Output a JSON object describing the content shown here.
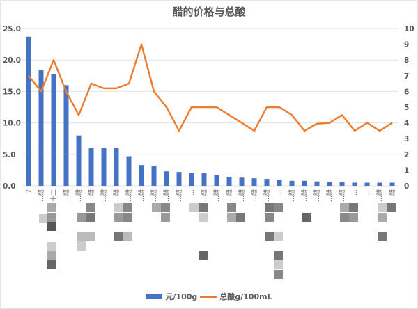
{
  "colors": {
    "bar": "#4472c4",
    "line": "#ed7d31",
    "grid": "#e3e3e3",
    "text": "#595959"
  },
  "chart_data": {
    "type": "bar+line",
    "title": "醋的价格与总酸",
    "xlabel": "",
    "ylabel_left": "",
    "ylabel_right": "",
    "ylim_left": [
      0,
      25
    ],
    "ylim_right": [
      0,
      10
    ],
    "left_ticks": [
      "0.0",
      "5.0",
      "10.0",
      "15.0",
      "20.0",
      "25.0"
    ],
    "right_ticks": [
      "0",
      "1",
      "2",
      "3",
      "4",
      "5",
      "6",
      "7",
      "8",
      "9",
      "10"
    ],
    "grid": true,
    "legend_position": "bottom",
    "categories": [
      "7",
      "…醋",
      "…十二",
      "…醋",
      "…醋",
      "…醋",
      "…醋",
      "…醋",
      "…醋",
      "…醋",
      "…醋",
      "…醋",
      "…醋",
      "…",
      "…醋",
      "…醋",
      "…醋",
      "…醋",
      "…醋",
      "…醋",
      "…",
      "…醋",
      "…醋",
      "…醋",
      "…醋",
      "…醋",
      "…",
      "…",
      "…醋",
      "…醋"
    ],
    "series": [
      {
        "name": "元/100g",
        "type": "bar",
        "axis": "left",
        "values": [
          23.7,
          18.4,
          17.8,
          16.0,
          8.0,
          6.0,
          6.0,
          6.0,
          4.7,
          3.3,
          3.2,
          2.3,
          2.2,
          2.1,
          2.0,
          1.7,
          1.4,
          1.3,
          1.2,
          1.1,
          1.0,
          0.8,
          0.8,
          0.7,
          0.6,
          0.6,
          0.5,
          0.5,
          0.5,
          0.5
        ]
      },
      {
        "name": "总酸g/100mL",
        "type": "line",
        "axis": "right",
        "values": [
          7.0,
          6.0,
          8.0,
          6.0,
          4.5,
          6.5,
          6.2,
          6.2,
          6.5,
          9.0,
          6.0,
          5.0,
          3.5,
          5.0,
          5.0,
          5.0,
          4.5,
          4.0,
          3.5,
          5.0,
          5.0,
          4.5,
          3.5,
          3.95,
          4.0,
          4.5,
          3.5,
          4.0,
          3.5,
          4.0
        ]
      }
    ]
  },
  "legend": {
    "bar_label": "元/100g",
    "line_label": "总酸g/100mL"
  }
}
